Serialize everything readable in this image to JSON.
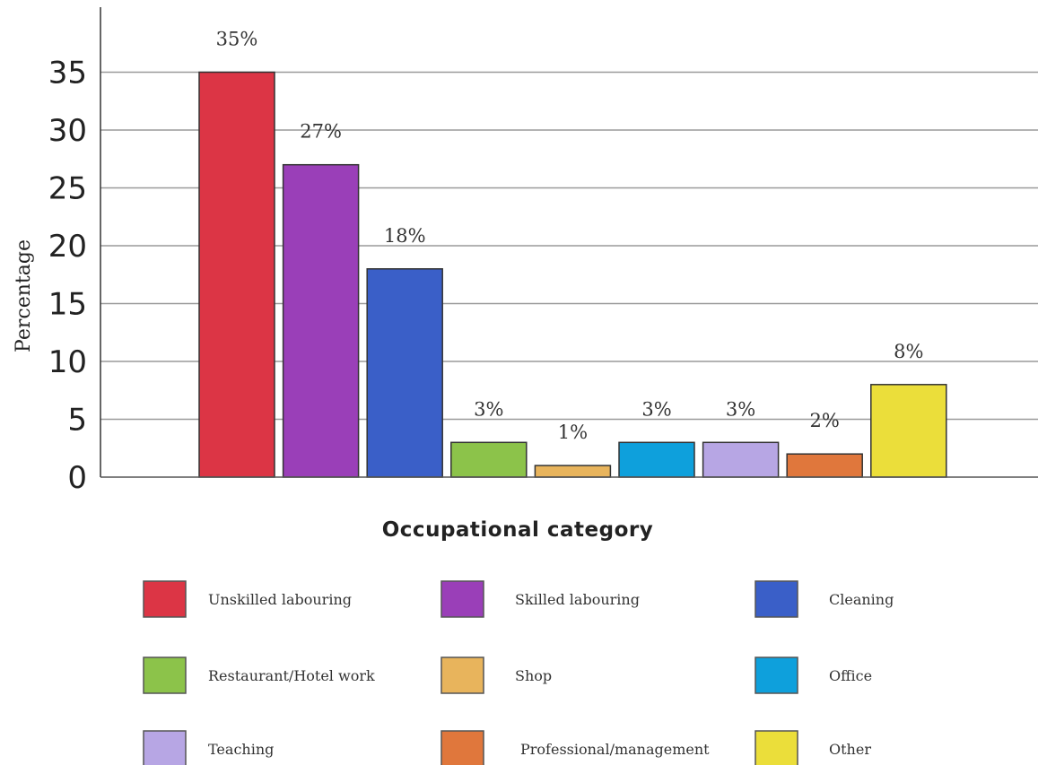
{
  "chart_data": {
    "type": "bar",
    "title": "",
    "xlabel": "Occupational category",
    "ylabel": "Percentage",
    "ylim": [
      0,
      40
    ],
    "yticks": [
      0,
      5,
      10,
      15,
      20,
      25,
      30,
      35
    ],
    "grid": true,
    "legend_position": "bottom",
    "categories": [
      "Unskilled labouring",
      "Skilled labouring",
      "Cleaning",
      "Restaurant/Hotel work",
      "Shop",
      "Office",
      "Teaching",
      "Professional/management",
      "Other"
    ],
    "values": [
      35,
      27,
      18,
      3,
      1,
      3,
      3,
      2,
      8
    ],
    "data_labels": [
      "35%",
      "27%",
      "18%",
      "3%",
      "1%",
      "3%",
      "3%",
      "2%",
      "8%"
    ],
    "colors": [
      "#dc3545",
      "#9a3fb8",
      "#3a5fc8",
      "#8cc34a",
      "#e8b45c",
      "#0ea0dc",
      "#b7a6e4",
      "#e0773c",
      "#ebde3a"
    ],
    "legend": [
      "Unskilled labouring",
      "Skilled labouring",
      "Cleaning",
      "Restaurant/Hotel work",
      "Shop",
      "Office",
      "Teaching",
      "Professional/management",
      "Other"
    ]
  }
}
